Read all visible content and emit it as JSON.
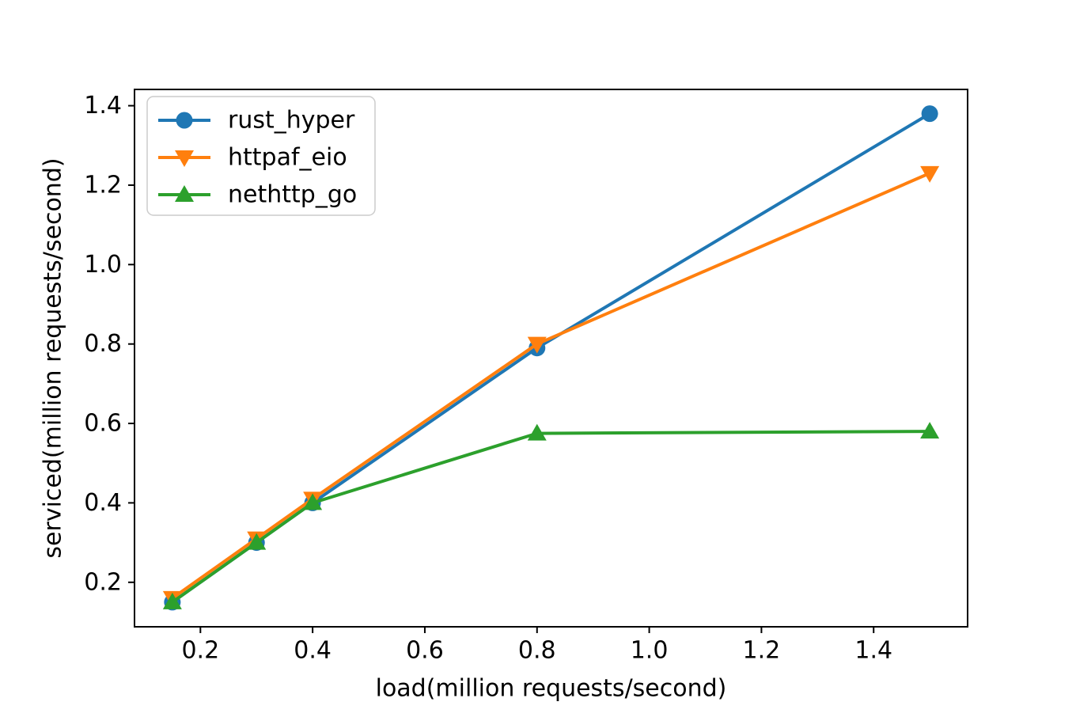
{
  "figure": {
    "background": "#ffffff"
  },
  "chart_data": {
    "type": "line",
    "title": "",
    "xlabel": "load(million requests/second)",
    "ylabel": "serviced(million requests/second)",
    "x": [
      0.15,
      0.3,
      0.4,
      0.8,
      1.5
    ],
    "series": [
      {
        "name": "rust_hyper",
        "color": "#1f77b4",
        "marker": "circle",
        "values": [
          0.15,
          0.3,
          0.4,
          0.79,
          1.38
        ]
      },
      {
        "name": "httpaf_eio",
        "color": "#ff7f0e",
        "marker": "triangle-down",
        "values": [
          0.16,
          0.31,
          0.41,
          0.8,
          1.23
        ]
      },
      {
        "name": "nethttp_go",
        "color": "#2ca02c",
        "marker": "triangle-up",
        "values": [
          0.15,
          0.3,
          0.4,
          0.575,
          0.58
        ]
      }
    ],
    "x_ticks": [
      0.2,
      0.4,
      0.6,
      0.8,
      1.0,
      1.2,
      1.4
    ],
    "y_ticks": [
      0.2,
      0.4,
      0.6,
      0.8,
      1.0,
      1.2,
      1.4
    ],
    "xlim": [
      0.0825,
      1.5675
    ],
    "ylim": [
      0.088,
      1.441
    ],
    "grid": false,
    "legend_position": "upper-left",
    "axis_color": "#000000",
    "tick_label_color": "#000000",
    "legend_border_color": "#cccccc",
    "legend_background": "#ffffff"
  }
}
